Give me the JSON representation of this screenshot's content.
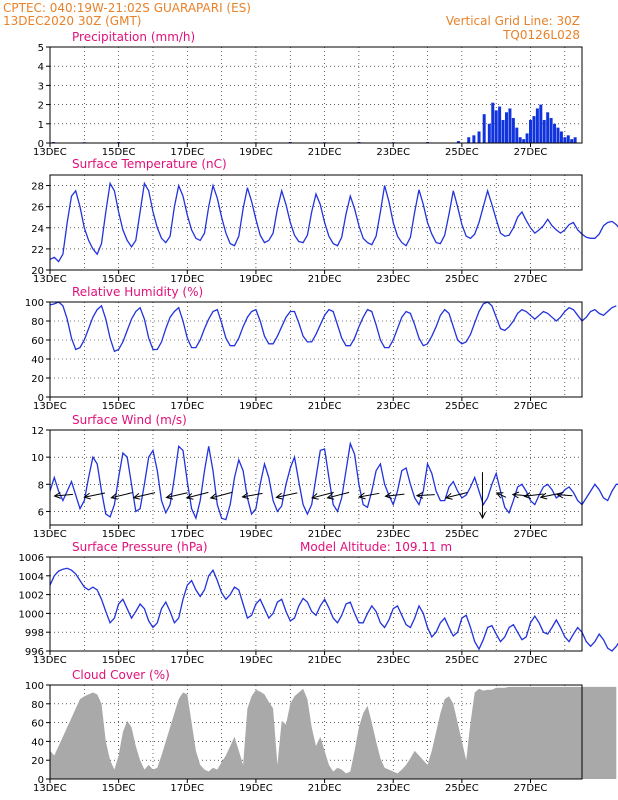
{
  "header": {
    "line1": "CPTEC:  040:19W-21:02S  GUARAPARI (ES)",
    "line2": "13DEC2020 30Z (GMT)",
    "grid_note": "Vertical Grid Line: 30Z",
    "product_code": "TQ0126L028"
  },
  "colors": {
    "header": "#e8822a",
    "title": "#e0107a",
    "series": "#2233dd",
    "bars": "#1133dd",
    "cloud": "#a9a9a9",
    "grid": "#000000"
  },
  "chart_data": [
    {
      "type": "bar",
      "title": "Precipitation (mm/h)",
      "ylim": [
        0,
        5
      ],
      "yticks": [
        "0",
        "1",
        "2",
        "3",
        "4",
        "5"
      ],
      "xlim": [
        0,
        15.5
      ],
      "xticks": [
        "13DEC",
        "15DEC",
        "17DEC",
        "19DEC",
        "21DEC",
        "23DEC",
        "25DEC",
        "27DEC"
      ],
      "grid": true,
      "x_unit": "days since 13DEC 00Z",
      "x": [
        0.1,
        1,
        2,
        3,
        4,
        5,
        6,
        7,
        8,
        9,
        10,
        11,
        11.9,
        12.2,
        12.35,
        12.5,
        12.65,
        12.8,
        12.9,
        13.0,
        13.1,
        13.2,
        13.3,
        13.4,
        13.5,
        13.6,
        13.7,
        13.8,
        13.9,
        14.0,
        14.1,
        14.2,
        14.3,
        14.4,
        14.5,
        14.6,
        14.7,
        14.8,
        14.9,
        15.0,
        15.1,
        15.2,
        15.3
      ],
      "values": [
        0.05,
        0.04,
        0.05,
        0.03,
        0.04,
        0.03,
        0.04,
        0.05,
        0.04,
        0.05,
        0.04,
        0.05,
        0.1,
        0.3,
        0.4,
        0.6,
        1.5,
        1.0,
        2.1,
        1.7,
        1.9,
        1.2,
        1.6,
        1.8,
        1.3,
        0.8,
        0.3,
        0.2,
        0.5,
        1.2,
        1.4,
        1.8,
        2.0,
        1.2,
        1.6,
        1.3,
        1.0,
        0.8,
        0.6,
        0.3,
        0.4,
        0.2,
        0.3
      ]
    },
    {
      "type": "line",
      "title": "Surface Temperature (nC)",
      "ylim": [
        20,
        29
      ],
      "yticks": [
        "20",
        "22",
        "24",
        "26",
        "28"
      ],
      "xlim": [
        0,
        15.5
      ],
      "xticks": [
        "13DEC",
        "15DEC",
        "17DEC",
        "19DEC",
        "21DEC",
        "23DEC",
        "25DEC",
        "27DEC"
      ],
      "grid": true,
      "x_unit": "days since 13DEC 00Z",
      "series": [
        {
          "x_step": 0.125,
          "values": [
            21.0,
            21.2,
            20.8,
            21.5,
            24.5,
            27.0,
            27.5,
            26.0,
            24.0,
            22.8,
            22.0,
            21.5,
            22.5,
            25.5,
            28.2,
            27.5,
            25.5,
            23.8,
            22.8,
            22.2,
            22.8,
            25.5,
            28.2,
            27.5,
            25.5,
            24.0,
            23.0,
            22.6,
            23.2,
            26.0,
            28.0,
            27.0,
            25.2,
            23.8,
            23.0,
            22.8,
            23.5,
            26.0,
            28.0,
            26.8,
            25.0,
            23.5,
            22.5,
            22.3,
            23.2,
            25.8,
            27.8,
            26.5,
            24.8,
            23.3,
            22.6,
            22.8,
            23.5,
            25.8,
            27.5,
            26.2,
            24.5,
            23.3,
            22.7,
            22.6,
            23.3,
            25.5,
            27.2,
            26.2,
            24.5,
            23.2,
            22.5,
            22.3,
            23.1,
            25.3,
            27.0,
            25.8,
            24.2,
            23.0,
            22.6,
            22.4,
            23.2,
            25.5,
            28.0,
            26.5,
            24.5,
            23.2,
            22.6,
            22.3,
            23.1,
            25.5,
            27.6,
            26.2,
            24.5,
            23.4,
            22.6,
            22.5,
            23.3,
            25.3,
            27.5,
            26.0,
            24.3,
            23.2,
            23.0,
            23.4,
            24.5,
            26.0,
            27.5,
            26.2,
            24.8,
            23.5,
            23.2,
            23.3,
            24.0,
            25.0,
            25.5,
            24.7,
            24.0,
            23.5,
            23.8,
            24.2,
            24.8,
            24.2,
            23.8,
            23.5,
            23.8,
            24.3,
            24.5,
            23.8,
            23.4,
            23.1,
            23.0,
            23.0,
            23.4,
            24.2,
            24.5,
            24.6,
            24.3,
            23.8,
            23.6
          ]
        }
      ]
    },
    {
      "type": "line",
      "title": "Relative Humidity (%)",
      "ylim": [
        0,
        100
      ],
      "yticks": [
        "0",
        "20",
        "40",
        "60",
        "80",
        "100"
      ],
      "xlim": [
        0,
        15.5
      ],
      "xticks": [
        "13DEC",
        "15DEC",
        "17DEC",
        "19DEC",
        "21DEC",
        "23DEC",
        "25DEC",
        "27DEC"
      ],
      "grid": true,
      "x_unit": "days since 13DEC 00Z",
      "series": [
        {
          "x_step": 0.125,
          "values": [
            97,
            98,
            100,
            96,
            82,
            62,
            50,
            52,
            60,
            72,
            84,
            92,
            96,
            82,
            62,
            48,
            50,
            58,
            70,
            82,
            90,
            94,
            82,
            62,
            50,
            50,
            58,
            72,
            84,
            90,
            94,
            80,
            62,
            52,
            52,
            60,
            72,
            82,
            90,
            92,
            78,
            62,
            54,
            54,
            62,
            74,
            84,
            90,
            92,
            80,
            64,
            56,
            56,
            64,
            74,
            84,
            90,
            90,
            78,
            64,
            58,
            58,
            66,
            76,
            86,
            92,
            90,
            76,
            62,
            54,
            54,
            62,
            74,
            84,
            92,
            90,
            76,
            60,
            52,
            52,
            60,
            72,
            84,
            90,
            88,
            76,
            62,
            54,
            56,
            64,
            74,
            86,
            92,
            88,
            74,
            60,
            56,
            58,
            66,
            78,
            90,
            98,
            100,
            96,
            84,
            72,
            70,
            74,
            80,
            88,
            92,
            90,
            86,
            82,
            86,
            90,
            88,
            84,
            80,
            84,
            90,
            94,
            92,
            86,
            80,
            84,
            90,
            92,
            88,
            86,
            90,
            94,
            96
          ]
        }
      ]
    },
    {
      "type": "line",
      "title": "Surface Wind (m/s)",
      "ylim": [
        5,
        12
      ],
      "yticks": [
        "6",
        "8",
        "10",
        "12"
      ],
      "xlim": [
        0,
        15.5
      ],
      "xticks": [
        "13DEC",
        "15DEC",
        "17DEC",
        "19DEC",
        "21DEC",
        "23DEC",
        "25DEC",
        "27DEC"
      ],
      "grid": true,
      "x_unit": "days since 13DEC 00Z",
      "series": [
        {
          "x_step": 0.125,
          "values": [
            7.5,
            8.5,
            7.5,
            6.8,
            7.5,
            8.2,
            7.2,
            6.2,
            6.8,
            8.5,
            10.0,
            9.5,
            7.5,
            5.8,
            5.6,
            6.5,
            8.5,
            10.3,
            10.0,
            8.0,
            6.0,
            6.2,
            8.0,
            10.0,
            10.5,
            9.0,
            6.8,
            5.9,
            6.5,
            8.5,
            10.8,
            10.5,
            8.2,
            6.2,
            5.5,
            6.8,
            9.0,
            10.8,
            9.0,
            6.5,
            5.5,
            5.4,
            6.5,
            8.5,
            9.8,
            9.0,
            7.0,
            5.8,
            6.2,
            8.0,
            9.5,
            8.5,
            6.8,
            6.0,
            6.4,
            8.0,
            9.2,
            10.0,
            8.2,
            6.5,
            5.8,
            6.5,
            8.5,
            10.5,
            10.6,
            8.5,
            6.5,
            6.0,
            7.0,
            9.0,
            11.0,
            10.2,
            8.0,
            6.5,
            6.3,
            7.5,
            9.0,
            9.5,
            8.0,
            7.2,
            6.5,
            7.5,
            9.0,
            9.2,
            8.0,
            7.0,
            6.5,
            7.5,
            9.5,
            8.8,
            7.5,
            6.8,
            6.8,
            7.8,
            8.2,
            7.5,
            7.0,
            7.2,
            7.8,
            8.5,
            7.5,
            6.5,
            7.0,
            8.0,
            8.8,
            7.5,
            6.3,
            5.9,
            6.8,
            7.8,
            8.0,
            7.5,
            6.8,
            6.5,
            7.2,
            7.8,
            8.0,
            7.6,
            7.0,
            7.2,
            7.6,
            7.8,
            7.4,
            6.8,
            6.5,
            7.0,
            7.5,
            8.0,
            7.6,
            7.0,
            6.8,
            7.5,
            8.0,
            8.0,
            7.5
          ]
        }
      ],
      "arrows": {
        "x": [
          0.4,
          1.3,
          2.1,
          2.75,
          3.7,
          4.3,
          5.0,
          5.9,
          6.9,
          7.95,
          8.4,
          9.3,
          10.05,
          10.95,
          11.85,
          12.6,
          13.15,
          13.7,
          14.1,
          14.6,
          15.0
        ],
        "u": [
          0.55,
          0.68,
          0.72,
          0.78,
          0.76,
          0.52,
          0.58,
          0.75,
          0.78,
          0.72,
          0.48,
          0.68,
          0.58,
          0.45,
          0.55,
          0.0,
          0.22,
          0.35,
          0.48,
          0.5,
          0.3
        ],
        "v": [
          0.55,
          0.52,
          0.5,
          0.55,
          0.55,
          0.35,
          0.38,
          0.62,
          0.58,
          0.48,
          0.32,
          0.55,
          0.55,
          0.48,
          0.38,
          -0.55,
          0.58,
          0.5,
          0.45,
          0.38,
          0.42
        ]
      }
    },
    {
      "type": "line",
      "title": "Surface Pressure (hPa)",
      "annotation": "Model Altitude: 109.11 m",
      "ylim": [
        996,
        1006
      ],
      "yticks": [
        "996",
        "998",
        "1000",
        "1002",
        "1004",
        "1006"
      ],
      "xlim": [
        0,
        15.5
      ],
      "xticks": [
        "13DEC",
        "15DEC",
        "17DEC",
        "19DEC",
        "21DEC",
        "23DEC",
        "25DEC",
        "27DEC"
      ],
      "grid": true,
      "x_unit": "days since 13DEC 00Z",
      "series": [
        {
          "x_step": 0.125,
          "values": [
            1003.0,
            1004.0,
            1004.5,
            1004.7,
            1004.8,
            1004.6,
            1004.2,
            1003.5,
            1002.8,
            1002.5,
            1002.8,
            1002.5,
            1001.5,
            1000.2,
            999.0,
            999.5,
            1001.0,
            1001.5,
            1000.5,
            999.5,
            1000.2,
            1001.0,
            1000.5,
            999.2,
            998.5,
            999.0,
            1000.5,
            1001.2,
            1000.2,
            999.0,
            999.5,
            1001.5,
            1003.0,
            1003.5,
            1002.5,
            1001.8,
            1002.5,
            1004.0,
            1004.6,
            1003.5,
            1002.2,
            1001.5,
            1002.0,
            1002.8,
            1002.5,
            1001.0,
            999.5,
            999.8,
            1001.0,
            1001.5,
            1000.5,
            999.5,
            1000.0,
            1001.2,
            1001.5,
            1000.2,
            999.2,
            999.5,
            1000.8,
            1001.6,
            1001.2,
            1000.2,
            999.8,
            1000.8,
            1001.5,
            1000.6,
            999.5,
            999.0,
            999.8,
            1001.0,
            1001.2,
            1000.0,
            999.0,
            999.0,
            1000.0,
            1000.8,
            1000.2,
            999.0,
            998.5,
            999.3,
            1000.5,
            1000.8,
            999.8,
            998.8,
            998.5,
            999.5,
            1000.8,
            1000.0,
            998.5,
            997.5,
            998.0,
            999.0,
            999.5,
            998.5,
            997.6,
            998.0,
            999.5,
            999.8,
            998.5,
            997.0,
            996.2,
            997.2,
            998.5,
            998.7,
            997.8,
            997.0,
            997.5,
            998.5,
            998.8,
            998.0,
            997.2,
            997.5,
            999.0,
            999.7,
            999.0,
            998.0,
            997.8,
            998.5,
            999.3,
            998.5,
            997.5,
            997.0,
            997.8,
            998.5,
            998.0,
            997.0,
            996.5,
            997.0,
            997.8,
            997.2,
            996.3,
            996.0,
            996.5,
            997.2,
            996.8
          ]
        }
      ]
    },
    {
      "type": "area",
      "title": "Cloud Cover (%)",
      "ylim": [
        0,
        100
      ],
      "yticks": [
        "0",
        "20",
        "40",
        "60",
        "80",
        "100"
      ],
      "xlim": [
        0,
        15.5
      ],
      "xticks": [
        "13DEC",
        "15DEC",
        "17DEC",
        "19DEC",
        "21DEC",
        "23DEC",
        "25DEC",
        "27DEC"
      ],
      "grid": true,
      "x_unit": "days since 13DEC 00Z",
      "series": [
        {
          "x_step": 0.125,
          "values": [
            30,
            25,
            35,
            45,
            55,
            65,
            75,
            85,
            88,
            90,
            92,
            90,
            80,
            40,
            20,
            10,
            25,
            50,
            62,
            55,
            35,
            20,
            10,
            15,
            10,
            12,
            25,
            40,
            55,
            70,
            85,
            92,
            90,
            60,
            30,
            15,
            10,
            8,
            12,
            10,
            18,
            25,
            35,
            45,
            30,
            15,
            75,
            88,
            95,
            93,
            90,
            82,
            75,
            15,
            62,
            58,
            80,
            88,
            92,
            96,
            85,
            55,
            35,
            45,
            30,
            15,
            8,
            12,
            10,
            6,
            8,
            30,
            55,
            70,
            78,
            60,
            40,
            22,
            12,
            10,
            8,
            6,
            10,
            15,
            22,
            30,
            25,
            20,
            15,
            30,
            50,
            70,
            85,
            88,
            80,
            60,
            40,
            20,
            60,
            92,
            96,
            94,
            95,
            95,
            97,
            97,
            97,
            98,
            98,
            98,
            98,
            98,
            98,
            98,
            98,
            98,
            98,
            98,
            98,
            98,
            98,
            98,
            98,
            98,
            98,
            98,
            98,
            98,
            98,
            98,
            98,
            98,
            98
          ]
        }
      ]
    }
  ]
}
